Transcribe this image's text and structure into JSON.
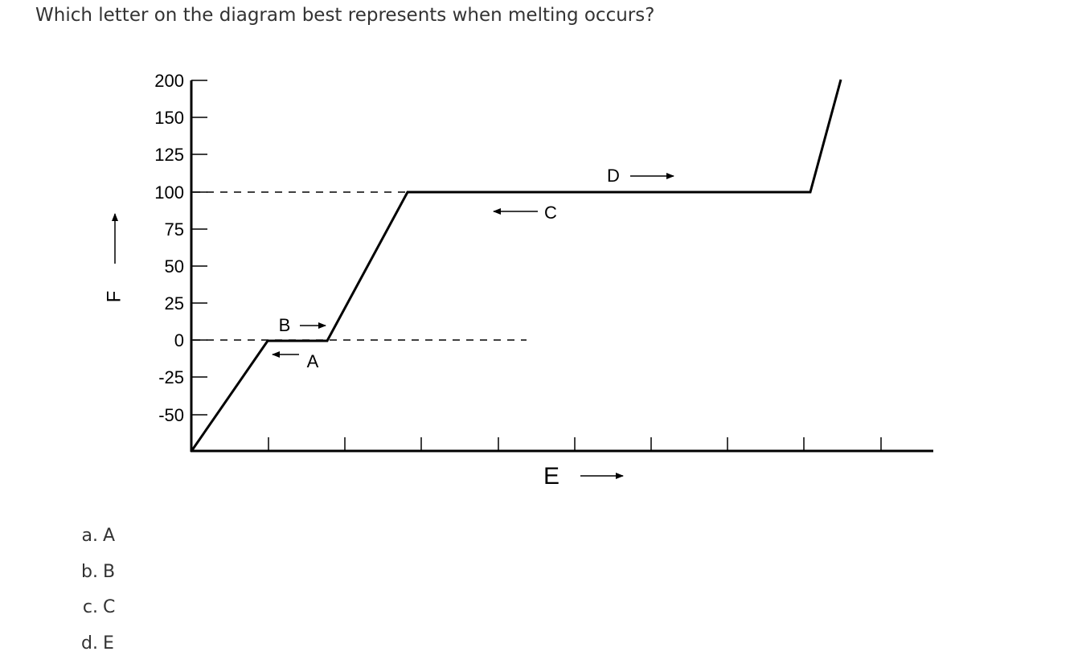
{
  "question": {
    "text": "Which letter on the diagram best represents when melting occurs?"
  },
  "diagram": {
    "y_axis_label": "F",
    "x_axis_label": "E",
    "y_ticks": [
      "200",
      "150",
      "125",
      "100",
      "75",
      "50",
      "25",
      "0",
      "-25",
      "-50"
    ],
    "x_tick_count": 9,
    "curve_points": [
      {
        "e": 0,
        "f": -70
      },
      {
        "e": 1,
        "f": 0
      },
      {
        "e": 1.8,
        "f": 0
      },
      {
        "e": 2.85,
        "f": 100
      },
      {
        "e": 8.2,
        "f": 100
      },
      {
        "e": 8.6,
        "f": 200
      }
    ],
    "dashed_lines": [
      {
        "f": 100,
        "e_from": 0,
        "e_to": 2.85
      },
      {
        "f": 0,
        "e_from": 0,
        "e_to": 4.4
      }
    ],
    "letters": [
      {
        "label": "A",
        "arrow": "left"
      },
      {
        "label": "B",
        "arrow": "right"
      },
      {
        "label": "C",
        "arrow": "left"
      },
      {
        "label": "D",
        "arrow": "right"
      }
    ]
  },
  "options": [
    {
      "letter": "a.",
      "text": "A"
    },
    {
      "letter": "b.",
      "text": "B"
    },
    {
      "letter": "c.",
      "text": "C"
    },
    {
      "letter": "d.",
      "text": "E"
    }
  ]
}
